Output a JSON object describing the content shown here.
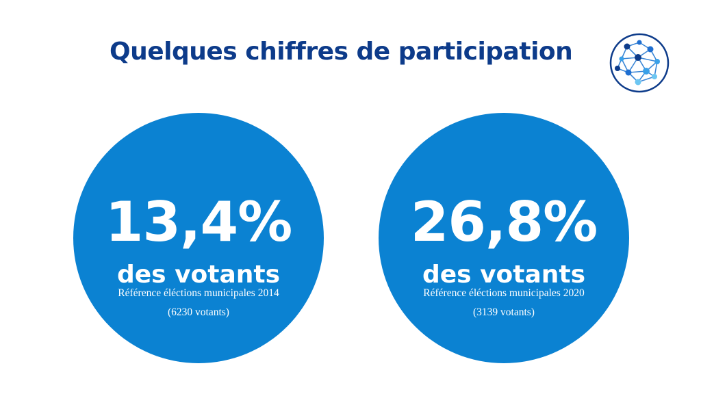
{
  "title": "Quelques chiffres de participation",
  "logo": {
    "icon": "network-globe-icon",
    "ring_color": "#0d3b8a",
    "node_colors": [
      "#0d3b8a",
      "#1f6fd1",
      "#3aa0e8",
      "#6cc6f2"
    ]
  },
  "stats": [
    {
      "percentage": "13,4%",
      "label": "des votants",
      "reference": "Référence éléctions municipales 2014",
      "voters": "(6230 votants)"
    },
    {
      "percentage": "26,8%",
      "label": "des votants",
      "reference": "Référence éléctions municipales 2020",
      "voters": "(3139 votants)"
    }
  ],
  "colors": {
    "title": "#0d3b8a",
    "circle": "#0b82d2",
    "circle_text": "#ffffff"
  }
}
